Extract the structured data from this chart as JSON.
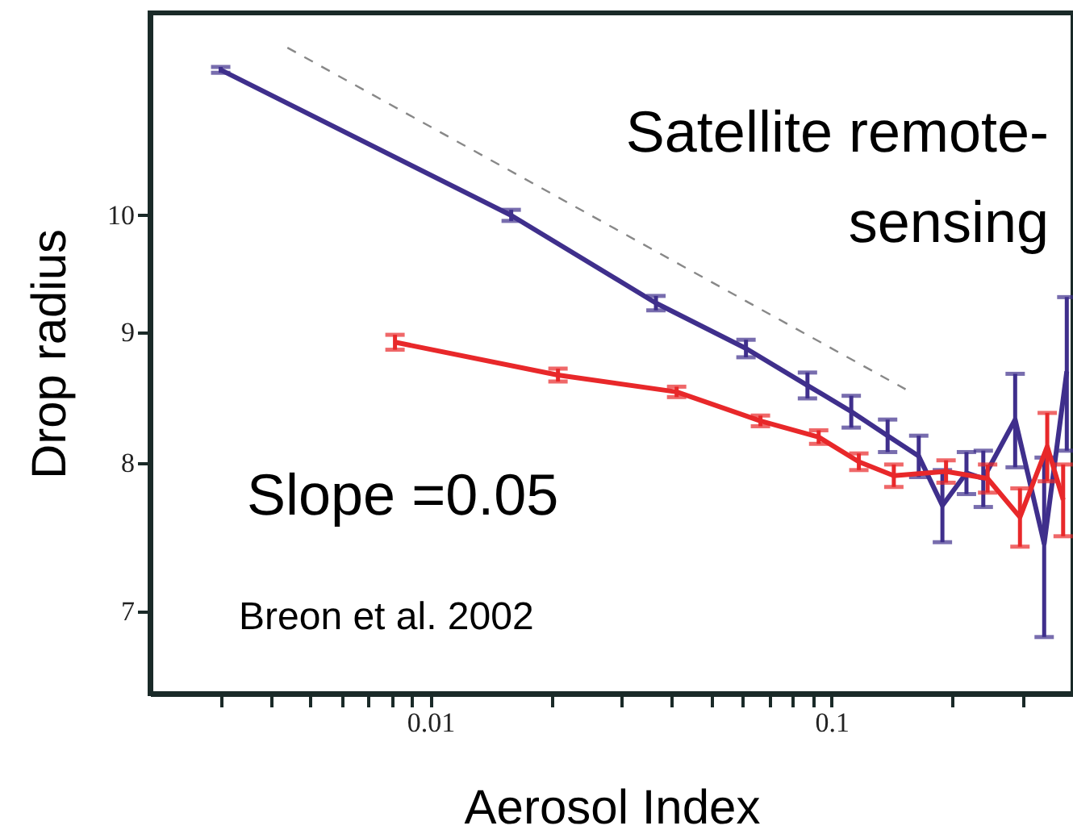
{
  "chart_data": {
    "type": "line",
    "xlabel": "Aerosol Index",
    "ylabel": "Drop radius",
    "annotations": [
      "Satellite remote-sensing",
      "Slope =0.05",
      "Breon et al. 2002"
    ],
    "log": "xy",
    "grid": false,
    "marker": "none",
    "line_style": "solid",
    "xlim": [
      0.002,
      0.4
    ],
    "ylim": [
      6.5,
      12
    ],
    "xticks": [
      {
        "value": 0.003,
        "label": null
      },
      {
        "value": 0.004,
        "label": null
      },
      {
        "value": 0.005,
        "label": null
      },
      {
        "value": 0.006,
        "label": null
      },
      {
        "value": 0.007,
        "label": null
      },
      {
        "value": 0.008,
        "label": null
      },
      {
        "value": 0.009,
        "label": null
      },
      0.01,
      {
        "value": 0.02,
        "label": null
      },
      {
        "value": 0.03,
        "label": null
      },
      {
        "value": 0.04,
        "label": null
      },
      {
        "value": 0.05,
        "label": null
      },
      {
        "value": 0.06,
        "label": null
      },
      {
        "value": 0.07,
        "label": null
      },
      {
        "value": 0.08,
        "label": null
      },
      {
        "value": 0.09,
        "label": null
      },
      0.1,
      {
        "value": 0.2,
        "label": null
      },
      {
        "value": 0.3,
        "label": null
      }
    ],
    "yticks": [
      7,
      8,
      9,
      10
    ],
    "series": [
      {
        "type": "line",
        "line_style": "dashed",
        "color": "#888888",
        "x": [
          0.0044,
          0.153
        ],
        "values": [
          11.63,
          8.55
        ]
      },
      {
        "color": "#3f2f8c",
        "x": [
          0.003,
          0.0159,
          0.0365,
          0.0612,
          0.0871,
          0.112,
          0.138,
          0.165,
          0.189,
          0.217,
          0.239,
          0.287,
          0.339,
          0.386
        ],
        "values": [
          11.4,
          10.0,
          9.24,
          8.87,
          8.58,
          8.38,
          8.2,
          8.05,
          7.7,
          7.93,
          7.89,
          8.32,
          7.44,
          8.69
        ],
        "errors": [
          0.03,
          0.05,
          0.06,
          0.07,
          0.1,
          0.12,
          0.12,
          0.15,
          0.25,
          0.15,
          0.2,
          0.35,
          0.6,
          0.6
        ]
      },
      {
        "color": "#e8282a",
        "x": [
          0.00816,
          0.0208,
          0.0411,
          0.0665,
          0.0929,
          0.117,
          0.143,
          0.193,
          0.245,
          0.295,
          0.345,
          0.378
        ],
        "values": [
          8.92,
          8.66,
          8.53,
          8.31,
          8.19,
          8.01,
          7.91,
          7.94,
          7.89,
          7.62,
          8.12,
          7.74
        ],
        "errors": [
          0.06,
          0.05,
          0.04,
          0.04,
          0.05,
          0.06,
          0.08,
          0.08,
          0.1,
          0.2,
          0.25,
          0.25
        ]
      }
    ]
  }
}
